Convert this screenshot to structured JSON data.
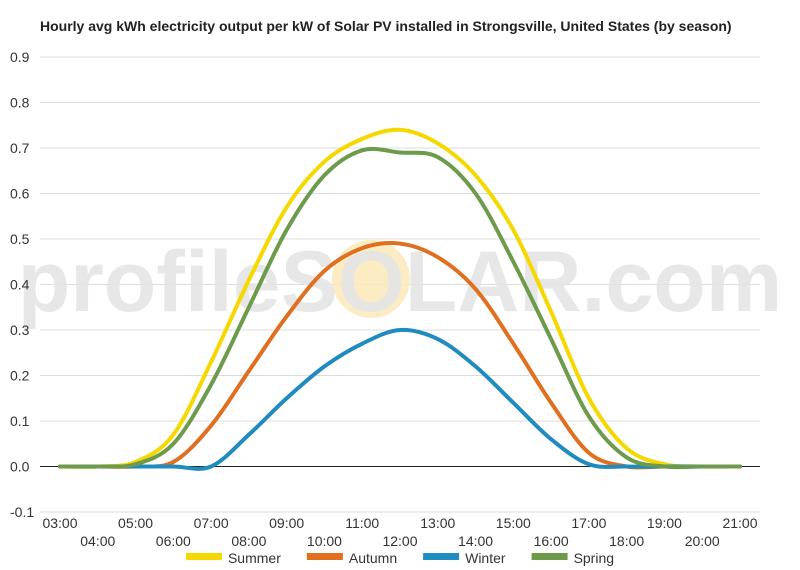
{
  "chart_data": {
    "type": "line",
    "title": "Hourly avg kWh electricity output per kW of Solar PV installed in Strongsville, United States (by season)",
    "watermark": "profileSOLAR.com",
    "xlabel": "",
    "ylabel": "",
    "ylim": [
      -0.1,
      0.9
    ],
    "yticks": [
      "-0.1",
      "0.0",
      "0.1",
      "0.2",
      "0.3",
      "0.4",
      "0.5",
      "0.6",
      "0.7",
      "0.8",
      "0.9"
    ],
    "x": [
      "03:00",
      "04:00",
      "05:00",
      "06:00",
      "07:00",
      "08:00",
      "09:00",
      "10:00",
      "11:00",
      "12:00",
      "13:00",
      "14:00",
      "15:00",
      "16:00",
      "17:00",
      "18:00",
      "19:00",
      "20:00",
      "21:00"
    ],
    "grid": true,
    "legend_position": "bottom",
    "series": [
      {
        "name": "Summer",
        "color": "#f5d800",
        "values": [
          0.0,
          0.0,
          0.01,
          0.07,
          0.23,
          0.41,
          0.57,
          0.67,
          0.72,
          0.74,
          0.71,
          0.64,
          0.52,
          0.34,
          0.15,
          0.04,
          0.005,
          0.0,
          0.0
        ]
      },
      {
        "name": "Autumn",
        "color": "#e07020",
        "values": [
          0.0,
          0.0,
          0.0,
          0.01,
          0.09,
          0.21,
          0.33,
          0.43,
          0.48,
          0.49,
          0.46,
          0.39,
          0.27,
          0.14,
          0.03,
          0.0,
          0.0,
          0.0,
          0.0
        ]
      },
      {
        "name": "Winter",
        "color": "#1f8bbf",
        "values": [
          0.0,
          0.0,
          0.0,
          0.0,
          0.0,
          0.07,
          0.15,
          0.22,
          0.27,
          0.3,
          0.28,
          0.22,
          0.14,
          0.06,
          0.005,
          0.0,
          0.0,
          0.0,
          0.0
        ]
      },
      {
        "name": "Spring",
        "color": "#6e9a4c",
        "values": [
          0.0,
          0.0,
          0.005,
          0.05,
          0.18,
          0.35,
          0.52,
          0.64,
          0.695,
          0.69,
          0.68,
          0.6,
          0.45,
          0.28,
          0.11,
          0.02,
          0.0,
          0.0,
          0.0
        ]
      }
    ]
  }
}
